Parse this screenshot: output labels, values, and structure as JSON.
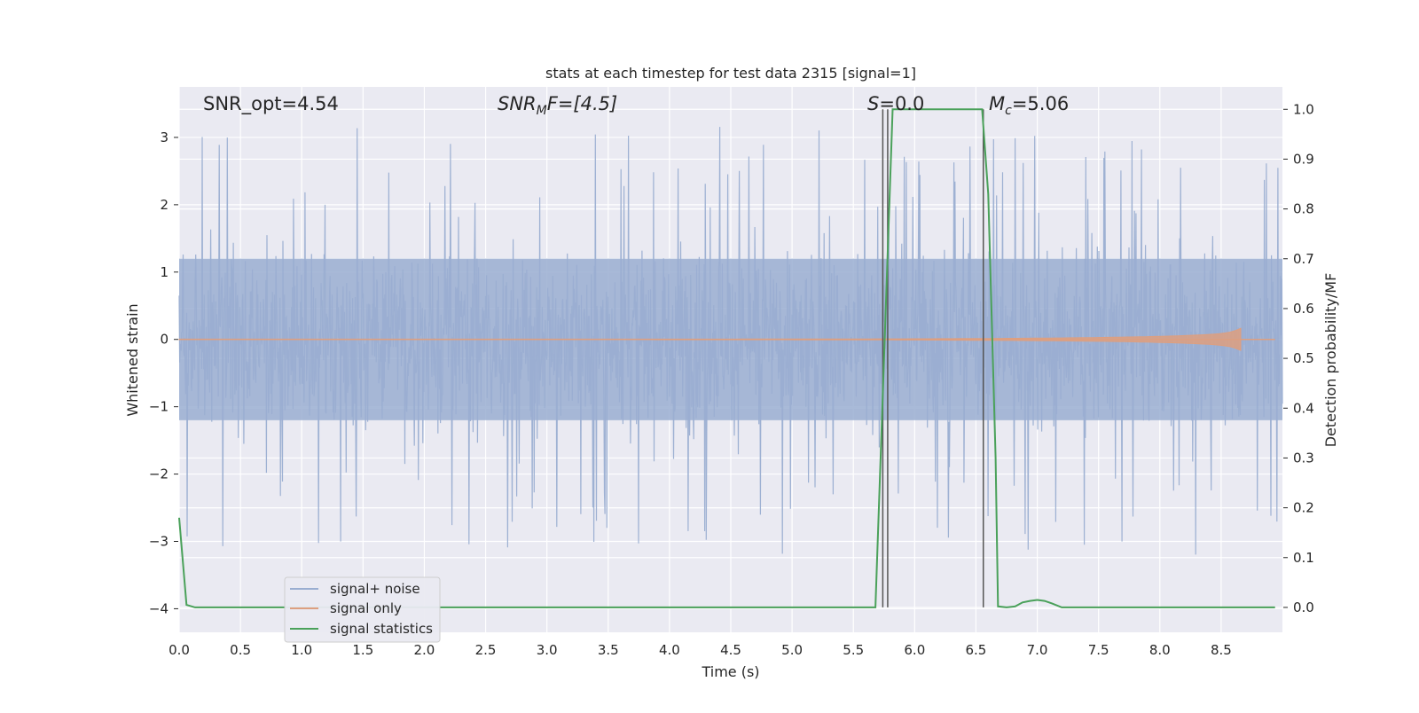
{
  "chart_data": {
    "type": "line",
    "title": "stats at each timestep for test data 2315 [signal=1]",
    "xlabel": "Time (s)",
    "ylabel": "Whitened strain",
    "ylabel_right": "Detection probability/MF",
    "xlim": [
      0.0,
      9.0
    ],
    "ylim": [
      -4.35,
      3.75
    ],
    "ylim_right": [
      -0.05,
      1.045
    ],
    "x_ticks": [
      "0.0",
      "0.5",
      "1.0",
      "1.5",
      "2.0",
      "2.5",
      "3.0",
      "3.5",
      "4.0",
      "4.5",
      "5.0",
      "5.5",
      "6.0",
      "6.5",
      "7.0",
      "7.5",
      "8.0",
      "8.5"
    ],
    "y_ticks": [
      "3",
      "2",
      "1",
      "0",
      "−1",
      "−2",
      "−3",
      "−4"
    ],
    "y_ticks_right": [
      "1.0",
      "0.9",
      "0.8",
      "0.7",
      "0.6",
      "0.5",
      "0.4",
      "0.3",
      "0.2",
      "0.1",
      "0.0"
    ],
    "grid": true,
    "legend_position": "lower-left",
    "annotations": {
      "snr_opt": "SNR_opt=4.54",
      "snr_mf_main": "SNR",
      "snr_mf_sub": "M",
      "snr_mf_rest": "F=[4.5]",
      "s_var": "S",
      "s_rest": "=0.0",
      "mc_var": "M",
      "mc_sub": "c",
      "mc_rest": "=5.06"
    },
    "vertical_lines_x": [
      5.74,
      5.78,
      6.56
    ],
    "series": [
      {
        "name": "signal+ noise",
        "color": "#9aaed1",
        "axis": "left",
        "description_values": {
          "x_range": [
            0.0,
            9.0
          ],
          "envelope_min": -3.4,
          "envelope_max": 3.3,
          "core_range": [
            -1.2,
            1.2
          ]
        }
      },
      {
        "name": "signal only",
        "color": "#dd9f80",
        "axis": "left",
        "chirp": {
          "start": 0.0,
          "end": 8.66,
          "peak_amplitude": 0.45
        }
      },
      {
        "name": "signal statistics",
        "color": "#4aa15a",
        "axis": "right",
        "x": [
          0.0,
          0.06,
          0.13,
          5.68,
          5.82,
          6.55,
          6.6,
          6.66,
          6.68,
          6.75,
          6.82,
          6.88,
          6.94,
          7.0,
          7.06,
          7.12,
          7.2,
          7.5,
          8.0,
          8.5,
          8.94
        ],
        "y": [
          0.18,
          0.005,
          0.0,
          0.0,
          1.0,
          1.0,
          0.83,
          0.3,
          0.002,
          0.0,
          0.002,
          0.01,
          0.013,
          0.015,
          0.013,
          0.008,
          0.0,
          0.0,
          0.0,
          0.0,
          0.0
        ]
      }
    ]
  }
}
